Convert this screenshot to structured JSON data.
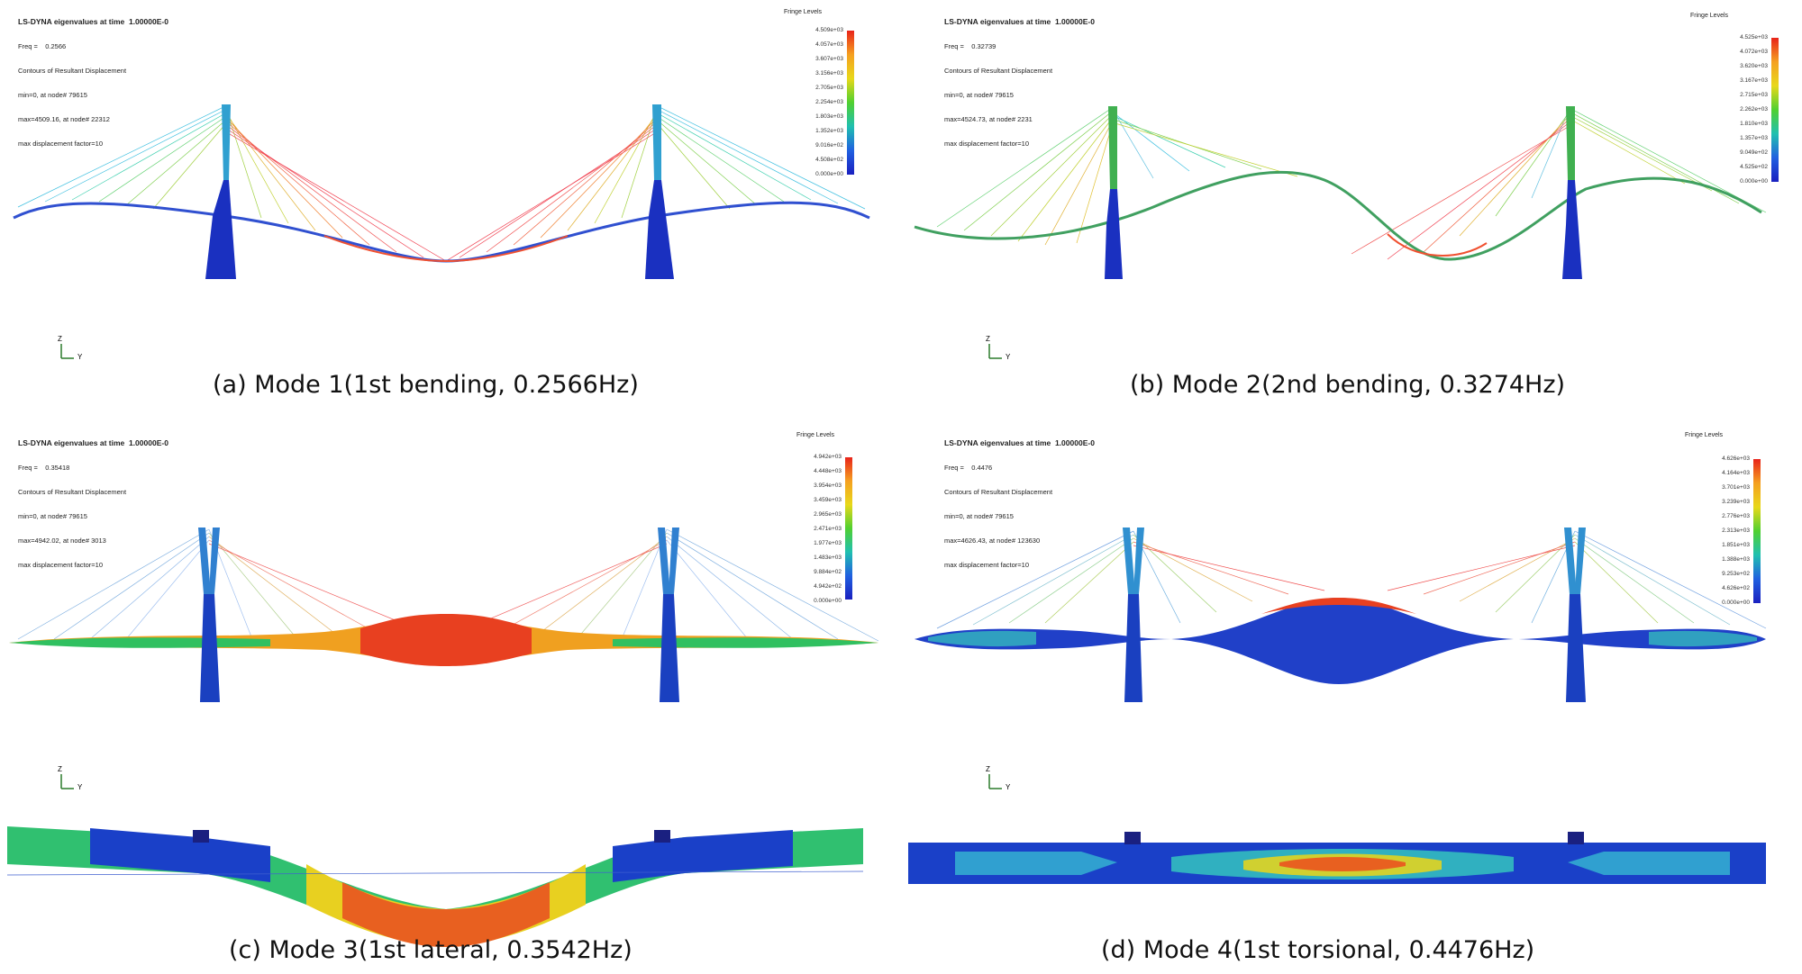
{
  "panels": [
    {
      "id": "a",
      "title": "LS-DYNA eigenvalues at time  1.00000E-0",
      "freq": "Freq =    0.2566",
      "contour": "Contours of Resultant Displacement",
      "min": "min=0, at node# 79615",
      "max": "max=4509.16, at node# 22312",
      "factor": "max displacement factor=10",
      "legend_title": "Fringe Levels",
      "legend_values": [
        "4.509e+03",
        "4.057e+03",
        "3.607e+03",
        "3.156e+03",
        "2.705e+03",
        "2.254e+03",
        "1.803e+03",
        "1.352e+03",
        "9.016e+02",
        "4.508e+02",
        "0.000e+00"
      ],
      "axis": {
        "z": "Z",
        "y": "Y"
      },
      "caption": "(a) Mode 1(1st bending, 0.2566Hz)"
    },
    {
      "id": "b",
      "title": "LS-DYNA eigenvalues at time  1.00000E-0",
      "freq": "Freq =    0.32739",
      "contour": "Contours of Resultant Displacement",
      "min": "min=0, at node# 79615",
      "max": "max=4524.73, at node# 2231",
      "factor": "max displacement factor=10",
      "legend_title": "Fringe Levels",
      "legend_values": [
        "4.525e+03",
        "4.072e+03",
        "3.620e+03",
        "3.167e+03",
        "2.715e+03",
        "2.262e+03",
        "1.810e+03",
        "1.357e+03",
        "9.049e+02",
        "4.525e+02",
        "0.000e+00"
      ],
      "axis": {
        "z": "Z",
        "y": "Y"
      },
      "caption": "(b) Mode 2(2nd bending, 0.3274Hz)"
    },
    {
      "id": "c",
      "title": "LS-DYNA eigenvalues at time  1.00000E-0",
      "freq": "Freq =    0.35418",
      "contour": "Contours of Resultant Displacement",
      "min": "min=0, at node# 79615",
      "max": "max=4942.02, at node# 3013",
      "factor": "max displacement factor=10",
      "legend_title": "Fringe Levels",
      "legend_values": [
        "4.942e+03",
        "4.448e+03",
        "3.954e+03",
        "3.459e+03",
        "2.965e+03",
        "2.471e+03",
        "1.977e+03",
        "1.483e+03",
        "9.884e+02",
        "4.942e+02",
        "0.000e+00"
      ],
      "axis": {
        "z": "Z",
        "y": "Y"
      },
      "caption": "(c) Mode 3(1st lateral, 0.3542Hz)"
    },
    {
      "id": "d",
      "title": "LS-DYNA eigenvalues at time  1.00000E-0",
      "freq": "Freq =    0.4476",
      "contour": "Contours of Resultant Displacement",
      "min": "min=0, at node# 79615",
      "max": "max=4626.43, at node# 123630",
      "factor": "max displacement factor=10",
      "legend_title": "Fringe Levels",
      "legend_values": [
        "4.626e+03",
        "4.164e+03",
        "3.701e+03",
        "3.239e+03",
        "2.776e+03",
        "2.313e+03",
        "1.851e+03",
        "1.388e+03",
        "9.253e+02",
        "4.626e+02",
        "0.000e+00"
      ],
      "axis": {
        "z": "Z",
        "y": "Y"
      },
      "caption": "(d) Mode 4(1st torsional, 0.4476Hz)"
    }
  ],
  "fringe_colors": [
    "#e8231a",
    "#f06020",
    "#f5a020",
    "#e8d81a",
    "#b0e01a",
    "#50d030",
    "#20c860",
    "#20c0b0",
    "#20a0e0",
    "#2060e0",
    "#1a20c0"
  ]
}
